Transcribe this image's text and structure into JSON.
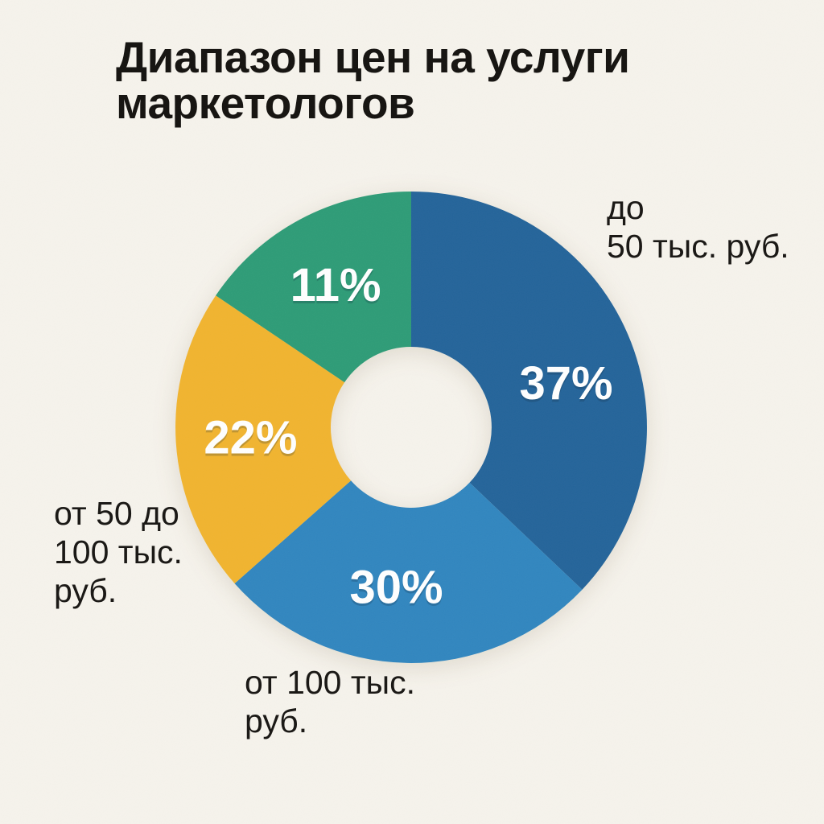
{
  "background_color": "#f6f3ec",
  "text_color": "#1b1916",
  "title": {
    "line1": "Диапазон цен на услуги",
    "line2": "маркетологов",
    "color": "#14120f"
  },
  "chart_data": {
    "type": "pie",
    "subtype": "donut",
    "title": "Диапазон цен на услуги маркетологов",
    "start_angle_deg": 0,
    "direction": "clockwise",
    "legend_position": "none",
    "value_label_color": "#ffffff",
    "slices": [
      {
        "name": "до 50 тыс. руб.",
        "value_pct": 37,
        "value_label": "37%",
        "color": "#24649a",
        "label_lines": [
          "до",
          "50 тыс. руб."
        ]
      },
      {
        "name": "от 100 тыс. руб.",
        "value_pct": 30,
        "value_label": "30%",
        "color": "#3186bf",
        "label_lines": [
          "от 100 тыс.",
          "руб."
        ]
      },
      {
        "name": "от 50 до 100 тыс. руб.",
        "value_pct": 22,
        "value_label": "22%",
        "color": "#f1b42f",
        "label_lines": [
          "от 50 до",
          "100 тыс.",
          "руб."
        ]
      },
      {
        "value_pct": 11,
        "value_label": "11%",
        "color": "#2e9c77",
        "label_lines": []
      }
    ]
  }
}
